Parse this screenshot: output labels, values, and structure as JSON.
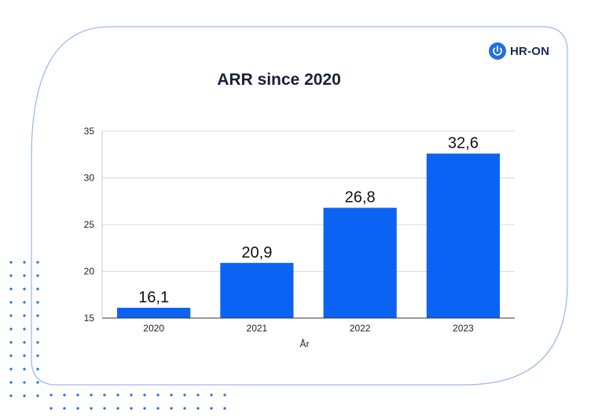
{
  "brand": {
    "logo_text": "HR-ON",
    "logo_color": "#1f6fe0",
    "accent_color": "#9fbbea",
    "dot_color": "#1f6fe0"
  },
  "chart_data": {
    "type": "bar",
    "title": "ARR since 2020",
    "categories": [
      "2020",
      "2021",
      "2022",
      "2023"
    ],
    "values": [
      16.1,
      20.9,
      26.8,
      32.6
    ],
    "value_labels": [
      "16,1",
      "20,9",
      "26,8",
      "32,6"
    ],
    "xlabel": "År",
    "ylabel": "",
    "ylim": [
      15,
      35
    ],
    "yticks": [
      15,
      20,
      25,
      30,
      35
    ],
    "grid": true,
    "legend": "none",
    "bar_color": "#0a63f2"
  }
}
